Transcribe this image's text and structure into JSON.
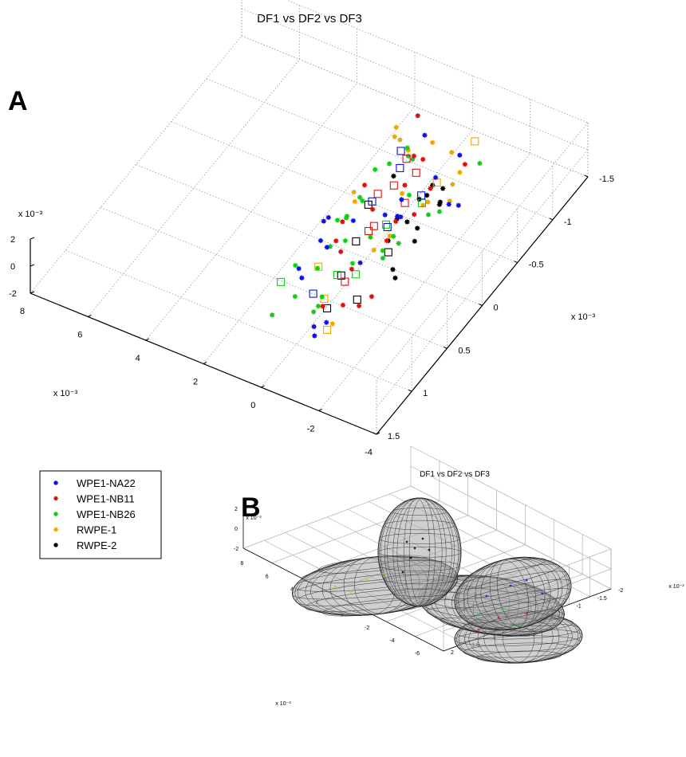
{
  "panel_labels": {
    "a": "A",
    "b": "B"
  },
  "colors": {
    "WPE1-NA22": "#1010e0",
    "WPE1-NB11": "#e01010",
    "WPE1-NB26": "#10d010",
    "RWPE-1": "#f0a800",
    "RWPE-2": "#000000"
  },
  "legend": {
    "items": [
      {
        "label": "WPE1-NA22",
        "color": "#1010e0"
      },
      {
        "label": "WPE1-NB11",
        "color": "#e01010"
      },
      {
        "label": "WPE1-NB26",
        "color": "#10d010"
      },
      {
        "label": "RWPE-1",
        "color": "#f0a800"
      },
      {
        "label": "RWPE-2",
        "color": "#000000"
      }
    ]
  },
  "chart_data": [
    {
      "type": "scatter",
      "projection": "3d",
      "title": "DF1 vs DF2 vs DF3",
      "grid": true,
      "xlim": [
        -4,
        8
      ],
      "ylim": [
        -1.5,
        1.5
      ],
      "zlim": [
        -2,
        2
      ],
      "x_ticks": [
        "8",
        "6",
        "4",
        "2",
        "0",
        "-2",
        "-4"
      ],
      "x_exponent": "x 10⁻³",
      "y_ticks": [
        "-1.5",
        "-1",
        "-0.5",
        "0",
        "0.5",
        "1",
        "1.5"
      ],
      "y_exponent": "x 10⁻³",
      "z_ticks": [
        "2",
        "0",
        "-2"
      ],
      "z_exponent": "x 10⁻³",
      "marker_types": [
        "asterisk",
        "square"
      ],
      "series": [
        {
          "name": "RWPE-2",
          "color": "#000000",
          "asterisk": [
            [
              -1.13,
              -0.47,
              1.42
            ],
            [
              -1.18,
              -0.37,
              1.35
            ],
            [
              -1.52,
              -0.42,
              0.83
            ],
            [
              -1.44,
              -0.49,
              1.32
            ],
            [
              -1.13,
              -0.11,
              0.99
            ],
            [
              -1.63,
              -0.05,
              1.34
            ],
            [
              -0.89,
              -0.38,
              0.75
            ],
            [
              -1.61,
              -0.02,
              0.55
            ],
            [
              -1.47,
              -0.43,
              0.54
            ],
            [
              -0.71,
              -0.14,
              0.68
            ],
            [
              -1.01,
              0.11,
              0.89
            ],
            [
              -1.66,
              0.31,
              0.6
            ],
            [
              0.39,
              -0.54,
              0.33
            ],
            [
              -1.84,
              0.35,
              0.38
            ]
          ],
          "square": [
            [
              0.41,
              -0.19,
              0.42
            ],
            [
              -0.99,
              0.1,
              -0.04
            ],
            [
              0.3,
              0.03,
              -0.8
            ],
            [
              -0.31,
              0.49,
              0.12
            ],
            [
              -1.01,
              0.55,
              -0.67
            ],
            [
              -0.43,
              0.74,
              -0.61
            ]
          ]
        },
        {
          "name": "RWPE-1",
          "color": "#f0a800",
          "asterisk": [
            [
              -0.8,
              -0.89,
              -1.46
            ],
            [
              1.44,
              -1.06,
              -1.2
            ],
            [
              0.29,
              -0.62,
              -1.37
            ],
            [
              -1.53,
              -0.55,
              0.09
            ],
            [
              -0.87,
              -0.44,
              -0.1
            ],
            [
              -0.74,
              0.79,
              -1.17
            ],
            [
              -0.75,
              -0.02,
              0.19
            ],
            [
              1.33,
              -0.94,
              -0.11
            ],
            [
              0.74,
              -0.89,
              -0.29
            ],
            [
              -0.03,
              -0.92,
              0.77
            ],
            [
              -0.72,
              -0.91,
              0.7
            ],
            [
              -1.17,
              -0.84,
              0.06
            ],
            [
              -0.87,
              -0.51,
              -0.3
            ],
            [
              1.27,
              -0.35,
              -1.11
            ],
            [
              -0.27,
              0.01,
              -1.07
            ],
            [
              1.5,
              -0.43,
              -1.12
            ],
            [
              1.45,
              -1.01,
              0.03
            ]
          ],
          "square": [
            [
              -1.23,
              -1.03,
              1.2
            ],
            [
              -1.06,
              -0.56,
              0.98
            ],
            [
              -0.43,
              0.78,
              0.35
            ],
            [
              0.65,
              0.42,
              -0.51
            ],
            [
              -0.87,
              0.92,
              -0.68
            ]
          ]
        },
        {
          "name": "WPE1-NB26",
          "color": "#10d010",
          "asterisk": [
            [
              -1.18,
              -1.12,
              -1.04
            ],
            [
              0.32,
              -0.72,
              0.73
            ],
            [
              0.5,
              -0.78,
              0.8
            ],
            [
              0.73,
              -0.2,
              0.62
            ],
            [
              1.08,
              -0.16,
              -0.82
            ],
            [
              -0.6,
              0.02,
              -0.77
            ],
            [
              -0.6,
              0.88,
              1.27
            ],
            [
              -0.42,
              0.86,
              0.3
            ],
            [
              -0.41,
              0.37,
              0.35
            ],
            [
              1.08,
              -0.56,
              0.09
            ],
            [
              0.92,
              0.04,
              0.29
            ],
            [
              0.52,
              1.13,
              0.54
            ],
            [
              1.01,
              0.6,
              0.42
            ],
            [
              0.59,
              0.05,
              0.8
            ],
            [
              0.51,
              0.81,
              -0.11
            ],
            [
              -0.33,
              0.89,
              -0.01
            ],
            [
              -0.2,
              0.03,
              -0.06
            ],
            [
              0.12,
              -0.7,
              0.8
            ],
            [
              0.16,
              0.24,
              0.7
            ],
            [
              -0.98,
              -0.05,
              -0.34
            ],
            [
              0.88,
              -0.68,
              -0.07
            ],
            [
              -1.06,
              -0.44,
              -0.63
            ],
            [
              0.46,
              0.33,
              0.58
            ],
            [
              -1.2,
              -0.54,
              -0.91
            ],
            [
              -0.42,
              -0.43,
              0.33
            ],
            [
              -0.85,
              0.12,
              -0.47
            ],
            [
              0.91,
              -0.31,
              -0.49
            ],
            [
              0.29,
              0.58,
              0.71
            ],
            [
              -0.85,
              -0.03,
              0.19
            ]
          ],
          "square": [
            [
              -0.47,
              -0.59,
              -1.23
            ],
            [
              -0.18,
              -0.2,
              -0.6
            ],
            [
              -0.77,
              0.47,
              0.48
            ],
            [
              1.44,
              0.63,
              -0.99
            ],
            [
              0.19,
              0.34,
              -1.22
            ]
          ]
        },
        {
          "name": "WPE1-NB11",
          "color": "#e01010",
          "asterisk": [
            [
              -0.17,
              -0.47,
              0.59
            ],
            [
              0.35,
              -0.94,
              -0.93
            ],
            [
              -1.08,
              -0.46,
              1.2
            ],
            [
              0.7,
              0.15,
              -0.35
            ],
            [
              -0.76,
              -0.1,
              0.77
            ],
            [
              -1.01,
              -0.98,
              -0.37
            ],
            [
              -1.18,
              -0.19,
              1.08
            ],
            [
              0.92,
              -1.1,
              0.78
            ],
            [
              0.77,
              0.03,
              0.24
            ],
            [
              1.2,
              -0.46,
              -0.53
            ],
            [
              -0.28,
              0.74,
              -0.59
            ],
            [
              0.32,
              -0.8,
              0.23
            ],
            [
              -0.86,
              0.07,
              0.51
            ],
            [
              -0.08,
              -0.05,
              1.38
            ],
            [
              -0.6,
              0.46,
              0.66
            ],
            [
              0.07,
              0.34,
              0.6
            ],
            [
              -1.17,
              0.41,
              -1.19
            ],
            [
              -1.0,
              0.52,
              -1.33
            ],
            [
              -0.59,
              0.58,
              -1.25
            ]
          ],
          "square": [
            [
              -0.9,
              0.68,
              1.38
            ],
            [
              0.31,
              -0.69,
              0.73
            ],
            [
              0.16,
              -0.45,
              0.41
            ],
            [
              -0.39,
              -0.38,
              0.04
            ],
            [
              -0.42,
              0.07,
              1.21
            ],
            [
              0.79,
              -0.48,
              -0.95
            ],
            [
              0.12,
              -0.75,
              -0.52
            ],
            [
              -0.16,
              0.04,
              0.42
            ]
          ]
        },
        {
          "name": "WPE1-NA22",
          "color": "#1010e0",
          "asterisk": [
            [
              0.2,
              0.11,
              1.32
            ],
            [
              -1.42,
              -0.72,
              -1.4
            ],
            [
              1.16,
              0.49,
              -0.64
            ],
            [
              -0.76,
              -0.17,
              0.66
            ],
            [
              1.03,
              0.19,
              1.07
            ],
            [
              -0.5,
              -0.23,
              0.1
            ],
            [
              -0.51,
              -1.11,
              -0.95
            ],
            [
              0.47,
              0.73,
              0.79
            ],
            [
              0.55,
              0.34,
              0.51
            ],
            [
              -0.68,
              1.02,
              -0.65
            ],
            [
              -1.38,
              -0.6,
              -0.6
            ],
            [
              -0.75,
              0.88,
              -0.49
            ],
            [
              0.94,
              0.27,
              0.22
            ],
            [
              -0.88,
              1.11,
              0.77
            ],
            [
              -0.18,
              -0.42,
              -0.15
            ],
            [
              -0.24,
              -0.16,
              0.42
            ],
            [
              1.23,
              0.04,
              0.22
            ],
            [
              -0.48,
              -0.78,
              -0.54
            ],
            [
              0.63,
              -1.08,
              -0.28
            ],
            [
              -0.21,
              0.18,
              -0.99
            ]
          ],
          "square": [
            [
              -0.79,
              0.03,
              1.2
            ],
            [
              0.83,
              -0.81,
              -1.17
            ],
            [
              -0.3,
              -0.65,
              -1.2
            ],
            [
              0.45,
              -0.26,
              0.18
            ],
            [
              -0.34,
              0.9,
              1.4
            ],
            [
              0.43,
              -0.66,
              1.39
            ]
          ]
        }
      ]
    },
    {
      "type": "scatter",
      "projection": "3d",
      "title": "DF1 vs DF2 vs DF3",
      "grid": true,
      "overlay": "confidence ellipsoids",
      "x_ticks": [
        "8",
        "6",
        "4",
        "2",
        "0",
        "-2",
        "-4",
        "-6"
      ],
      "x_exponent": "x 10⁻³",
      "y_ticks": [
        "-2",
        "-1.5",
        "-1",
        "-0.5",
        "0",
        "0.5",
        "1",
        "1.5",
        "2"
      ],
      "y_exponent": "x 10⁻³",
      "z_ticks": [
        "2",
        "0",
        "-2"
      ],
      "z_exponent": "x 10⁻³",
      "ellipsoids": [
        "RWPE-2",
        "RWPE-1",
        "WPE1-NA22",
        "WPE1-NB26",
        "WPE1-NB11"
      ]
    }
  ]
}
